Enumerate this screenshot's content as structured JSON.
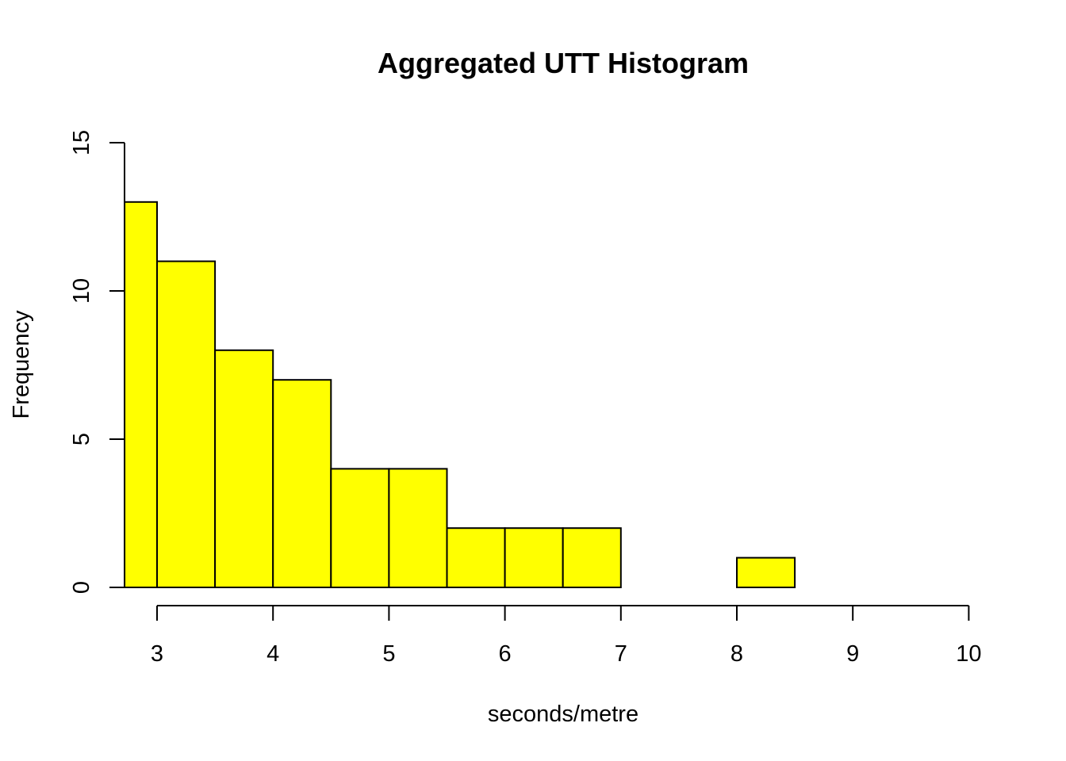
{
  "chart_data": {
    "type": "bar",
    "title": "Aggregated UTT Histogram",
    "xlabel": "seconds/metre",
    "ylabel": "Frequency",
    "xlim": [
      2.72,
      10
    ],
    "ylim": [
      0,
      15
    ],
    "x_ticks": [
      "3",
      "4",
      "5",
      "6",
      "7",
      "8",
      "9",
      "10"
    ],
    "x_tick_values": [
      3,
      4,
      5,
      6,
      7,
      8,
      9,
      10
    ],
    "y_ticks": [
      "0",
      "5",
      "10",
      "15"
    ],
    "y_tick_values": [
      0,
      5,
      10,
      15
    ],
    "bar_color": "#ffff00",
    "bins": [
      {
        "x0": 2.72,
        "x1": 3.0,
        "count": 13
      },
      {
        "x0": 3.0,
        "x1": 3.5,
        "count": 11
      },
      {
        "x0": 3.5,
        "x1": 4.0,
        "count": 8
      },
      {
        "x0": 4.0,
        "x1": 4.5,
        "count": 7
      },
      {
        "x0": 4.5,
        "x1": 5.0,
        "count": 4
      },
      {
        "x0": 5.0,
        "x1": 5.5,
        "count": 4
      },
      {
        "x0": 5.5,
        "x1": 6.0,
        "count": 2
      },
      {
        "x0": 6.0,
        "x1": 6.5,
        "count": 2
      },
      {
        "x0": 6.5,
        "x1": 7.0,
        "count": 2
      },
      {
        "x0": 7.0,
        "x1": 7.5,
        "count": 0
      },
      {
        "x0": 7.5,
        "x1": 8.0,
        "count": 0
      },
      {
        "x0": 8.0,
        "x1": 8.5,
        "count": 1
      }
    ],
    "grid": false,
    "legend": "none"
  }
}
